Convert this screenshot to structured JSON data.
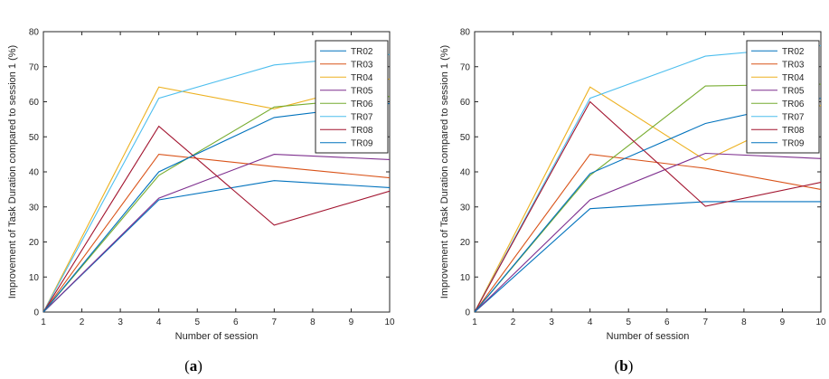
{
  "figure": {
    "panels": [
      {
        "label_open": "(",
        "label_letter": "a",
        "label_close": ")"
      },
      {
        "label_open": "(",
        "label_letter": "b",
        "label_close": ")"
      }
    ]
  },
  "colors": {
    "TR02": "#0072BD",
    "TR03": "#D95319",
    "TR04": "#EDB120",
    "TR05": "#7E2F8E",
    "TR06": "#77AC30",
    "TR07": "#4DBEEE",
    "TR08": "#A2142F",
    "TR09": "#0072BD"
  },
  "chart_data": [
    {
      "type": "line",
      "panel": "(a)",
      "xlabel": "Number of session",
      "ylabel": "Improvement of Task Duration compared to session 1 (%)",
      "xlim": [
        1,
        10
      ],
      "ylim": [
        0,
        80
      ],
      "xticks": [
        1,
        2,
        3,
        4,
        5,
        6,
        7,
        8,
        9,
        10
      ],
      "yticks": [
        0,
        10,
        20,
        30,
        40,
        50,
        60,
        70,
        80
      ],
      "grid": false,
      "legend_position": "top-right",
      "x": [
        1,
        4,
        7,
        10
      ],
      "series": [
        {
          "name": "TR02",
          "values": [
            0,
            32,
            37.5,
            35.5
          ]
        },
        {
          "name": "TR03",
          "values": [
            0,
            45,
            41.5,
            38.3
          ]
        },
        {
          "name": "TR04",
          "values": [
            0,
            64.2,
            58,
            66.5
          ]
        },
        {
          "name": "TR05",
          "values": [
            0,
            32.5,
            45,
            43.5
          ]
        },
        {
          "name": "TR06",
          "values": [
            0,
            39,
            58.5,
            61.5
          ]
        },
        {
          "name": "TR07",
          "values": [
            0,
            61,
            70.5,
            73.5
          ]
        },
        {
          "name": "TR08",
          "values": [
            0,
            53,
            24.8,
            34.5
          ]
        },
        {
          "name": "TR09",
          "values": [
            0,
            40,
            55.5,
            59.5
          ]
        }
      ]
    },
    {
      "type": "line",
      "panel": "(b)",
      "xlabel": "Number of session",
      "ylabel": "Improvement of Task Duration compared to session 1 (%)",
      "xlim": [
        1,
        10
      ],
      "ylim": [
        0,
        80
      ],
      "xticks": [
        1,
        2,
        3,
        4,
        5,
        6,
        7,
        8,
        9,
        10
      ],
      "yticks": [
        0,
        10,
        20,
        30,
        40,
        50,
        60,
        70,
        80
      ],
      "grid": false,
      "legend_position": "top-right",
      "x": [
        1,
        4,
        7,
        10
      ],
      "series": [
        {
          "name": "TR02",
          "values": [
            0,
            29.5,
            31.5,
            31.5
          ]
        },
        {
          "name": "TR03",
          "values": [
            0,
            45,
            41,
            35
          ]
        },
        {
          "name": "TR04",
          "values": [
            0,
            64.2,
            43.3,
            59
          ]
        },
        {
          "name": "TR05",
          "values": [
            0,
            32,
            45.3,
            43.8
          ]
        },
        {
          "name": "TR06",
          "values": [
            0,
            39,
            64.5,
            65
          ]
        },
        {
          "name": "TR07",
          "values": [
            0,
            61,
            73,
            76
          ]
        },
        {
          "name": "TR08",
          "values": [
            0,
            60,
            30.2,
            37
          ]
        },
        {
          "name": "TR09",
          "values": [
            0,
            39.5,
            53.8,
            61
          ]
        }
      ]
    }
  ]
}
